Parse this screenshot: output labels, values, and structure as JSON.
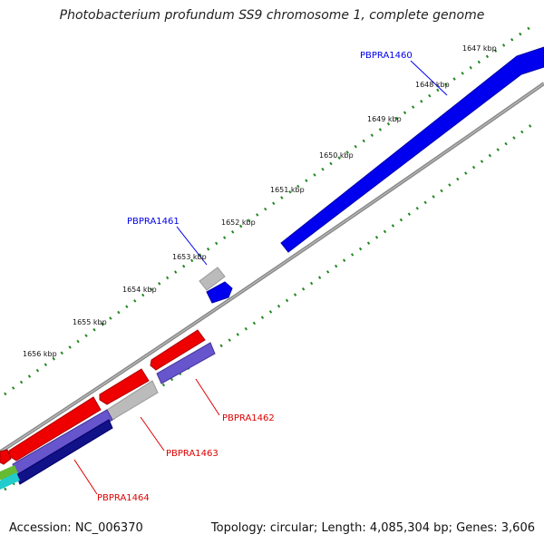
{
  "title": "Photobacterium profundum SS9 chromosome 1, complete genome",
  "footer": {
    "accession": "Accession: NC_006370",
    "summary": "Topology: circular; Length: 4,085,304 bp; Genes: 3,606"
  },
  "scale_labels": [
    "1647 kbp",
    "1648 kbp",
    "1649 kbp",
    "1650 kbp",
    "1651 kbp",
    "1652 kbp",
    "1653 kbp",
    "1654 kbp",
    "1655 kbp",
    "1656 kbp"
  ],
  "genes": [
    {
      "name": "PBPRA1460",
      "strand": "forward",
      "color": "#0000ee"
    },
    {
      "name": "PBPRA1461",
      "strand": "forward",
      "color": "#0000ee"
    },
    {
      "name": "PBPRA1462",
      "strand": "reverse",
      "color": "#dd0000"
    },
    {
      "name": "PBPRA1463",
      "strand": "reverse",
      "color": "#dd0000"
    },
    {
      "name": "PBPRA1464",
      "strand": "reverse",
      "color": "#dd0000"
    }
  ],
  "colors": {
    "backbone": "#888888",
    "forward_gene": "#0000ee",
    "reverse_gene": "#ee0000",
    "gray_feature": "#bbbbbb",
    "purple_feature": "#6655cc",
    "navy_feature": "#111188",
    "tick": "#228822"
  }
}
